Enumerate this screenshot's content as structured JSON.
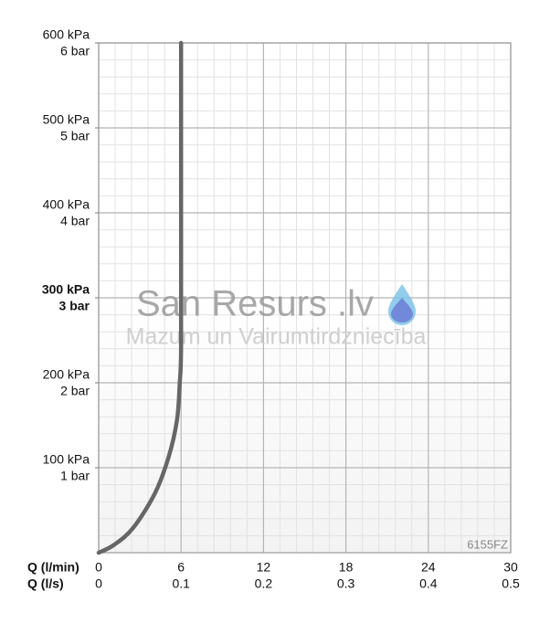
{
  "chart_data": {
    "type": "line",
    "x_label": "Q (l/min)",
    "x2_label": "Q (l/s)",
    "x": [
      0,
      1.1,
      2.5,
      4.1,
      5.1,
      5.7,
      5.9,
      6.0,
      6.0,
      6.0
    ],
    "series": [
      {
        "name": "6155FZ",
        "color": "#666666",
        "values": [
          0,
          9,
          29,
          70,
          113,
          156,
          199,
          242,
          400,
          600
        ]
      }
    ],
    "xlim": [
      0,
      30
    ],
    "xticks": [
      0,
      6,
      12,
      18,
      24,
      30
    ],
    "x2ticks": [
      {
        "value": 0,
        "label": "0"
      },
      {
        "value": 6,
        "label": "0.1"
      },
      {
        "value": 12,
        "label": "0.2"
      },
      {
        "value": 18,
        "label": "0.3"
      },
      {
        "value": 24,
        "label": "0.4"
      },
      {
        "value": 30,
        "label": "0.5"
      }
    ],
    "ylim": [
      0,
      600
    ],
    "yticks": [
      {
        "value": 100,
        "label": "100 kPa"
      },
      {
        "value": 200,
        "label": "200 kPa"
      },
      {
        "value": 300,
        "label": "300 kPa",
        "bold": true
      },
      {
        "value": 400,
        "label": "400 kPa"
      },
      {
        "value": 500,
        "label": "500 kPa"
      },
      {
        "value": 600,
        "label": "600 kPa"
      }
    ],
    "y2ticks": [
      {
        "value": 100,
        "label": "1 bar"
      },
      {
        "value": 200,
        "label": "2 bar"
      },
      {
        "value": 300,
        "label": "3 bar",
        "bold": true
      },
      {
        "value": 400,
        "label": "4 bar"
      },
      {
        "value": 500,
        "label": "5 bar"
      },
      {
        "value": 600,
        "label": "6 bar"
      }
    ],
    "grid": true,
    "minor_divisions": 5,
    "watermark": {
      "brand": "San Resurs .lv",
      "tagline": "Mazum un Vairumtirdzniecība"
    }
  }
}
